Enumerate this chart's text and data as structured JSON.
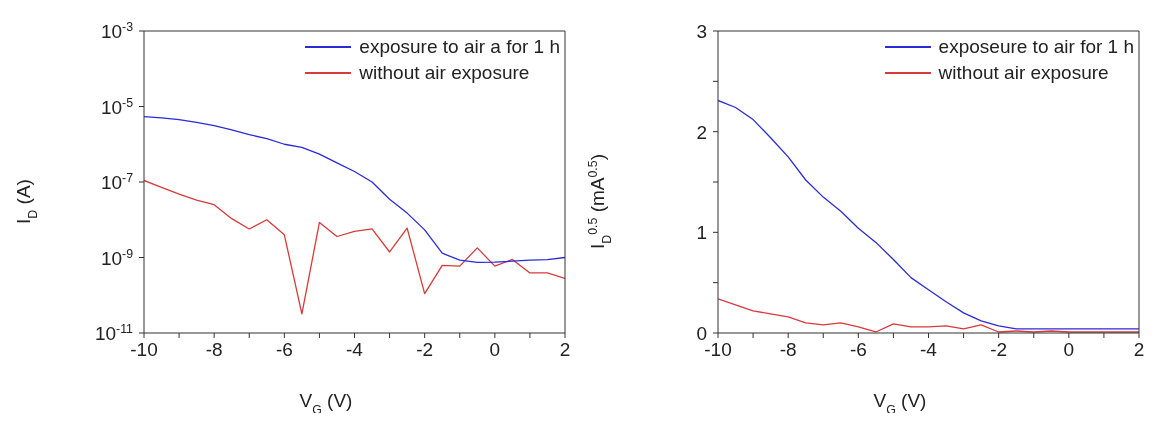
{
  "chart_data": [
    {
      "type": "line",
      "x": [
        -10,
        -9.5,
        -9,
        -8.5,
        -8,
        -7.5,
        -7,
        -6.5,
        -6,
        -5.5,
        -5,
        -4.5,
        -4,
        -3.5,
        -3,
        -2.5,
        -2,
        -1.5,
        -1,
        -0.5,
        0,
        0.5,
        1,
        1.5,
        2
      ],
      "xlabel": "V$_{G}$ (V)",
      "ylabel": "I$_{D}$ (A)",
      "log": "y",
      "xlim": [
        -10,
        2
      ],
      "xticks": [
        -10,
        {
          "value": -9,
          "label": null
        },
        -8,
        {
          "value": -7,
          "label": null
        },
        -6,
        {
          "value": -5,
          "label": null
        },
        -4,
        {
          "value": -3,
          "label": null
        },
        -2,
        {
          "value": -1,
          "label": null
        },
        0,
        {
          "value": 1,
          "label": null
        },
        2
      ],
      "ylim": [
        1e-11,
        0.001
      ],
      "yticks": [
        {
          "value": 1e-11,
          "label": "10$^{-11}$"
        },
        {
          "value": 1e-09,
          "label": "10$^{-9}$"
        },
        {
          "value": 1e-07,
          "label": "10$^{-7}$"
        },
        {
          "value": 1e-05,
          "label": "10$^{-5}$"
        },
        {
          "value": 0.001,
          "label": "10$^{-3}$"
        }
      ],
      "legend": "top right",
      "marker": "none",
      "line_style": "solid",
      "grid": false,
      "series": [
        {
          "name": "exposure to air a for 1 h",
          "color": "#2b2bd8",
          "values": [
            5.4e-06,
            5e-06,
            4.5e-06,
            3.8e-06,
            3.1e-06,
            2.4e-06,
            1.8e-06,
            1.4e-06,
            1e-06,
            8.3e-07,
            5.5e-07,
            3.2e-07,
            1.9e-07,
            1e-07,
            3.5e-08,
            1.5e-08,
            5.4e-09,
            1.3e-09,
            8.5e-10,
            7.4e-10,
            7.5e-10,
            8e-10,
            8.5e-10,
            8.8e-10,
            1e-09
          ]
        },
        {
          "name": "without air exposure",
          "color": "#d83a3a",
          "values": [
            1.1e-07,
            7.2e-08,
            4.8e-08,
            3.3e-08,
            2.5e-08,
            1.07e-08,
            5.7e-09,
            1e-08,
            4e-09,
            3.2e-11,
            8.5e-09,
            3.6e-09,
            4.9e-09,
            5.7e-09,
            1.4e-09,
            6e-09,
            1.1e-10,
            6.2e-10,
            5.9e-10,
            1.8e-09,
            5.9e-10,
            8.9e-10,
            3.9e-10,
            3.9e-10,
            2.8e-10
          ]
        }
      ]
    },
    {
      "type": "line",
      "x": [
        -10,
        -9.5,
        -9,
        -8.5,
        -8,
        -7.5,
        -7,
        -6.5,
        -6,
        -5.5,
        -5,
        -4.5,
        -4,
        -3.5,
        -3,
        -2.5,
        -2,
        -1.5,
        -1,
        -0.5,
        0,
        0.5,
        1,
        1.5,
        2
      ],
      "xlabel": "V$_{G}$ (V)",
      "ylabel": "I$_{D}$$^{0.5}$ (mA$^{0.5}$)",
      "xlim": [
        -10,
        2
      ],
      "xticks": [
        -10,
        {
          "value": -9,
          "label": null
        },
        -8,
        {
          "value": -7,
          "label": null
        },
        -6,
        {
          "value": -5,
          "label": null
        },
        -4,
        {
          "value": -3,
          "label": null
        },
        -2,
        {
          "value": -1,
          "label": null
        },
        0,
        {
          "value": 1,
          "label": null
        },
        2
      ],
      "ylim": [
        0,
        3
      ],
      "yticks": [
        0,
        {
          "value": 0.5,
          "label": null
        },
        1,
        {
          "value": 1.5,
          "label": null
        },
        2,
        {
          "value": 2.5,
          "label": null
        },
        3
      ],
      "legend": "top right",
      "marker": "none",
      "line_style": "solid",
      "grid": false,
      "series": [
        {
          "name": "exposeure to air for 1 h",
          "color": "#2b2bd8",
          "values": [
            2.31,
            2.24,
            2.12,
            1.94,
            1.75,
            1.52,
            1.35,
            1.21,
            1.04,
            0.9,
            0.73,
            0.55,
            0.43,
            0.31,
            0.2,
            0.12,
            0.07,
            0.04,
            0.04,
            0.04,
            0.04,
            0.04,
            0.04,
            0.04,
            0.04
          ]
        },
        {
          "name": "without air exposure",
          "color": "#d83a3a",
          "values": [
            0.34,
            0.28,
            0.22,
            0.19,
            0.16,
            0.1,
            0.08,
            0.1,
            0.06,
            0.01,
            0.09,
            0.06,
            0.06,
            0.07,
            0.04,
            0.08,
            0.01,
            0.02,
            0.01,
            0.02,
            0.01,
            0.01,
            0.01,
            0.01,
            0.01
          ]
        }
      ]
    }
  ]
}
